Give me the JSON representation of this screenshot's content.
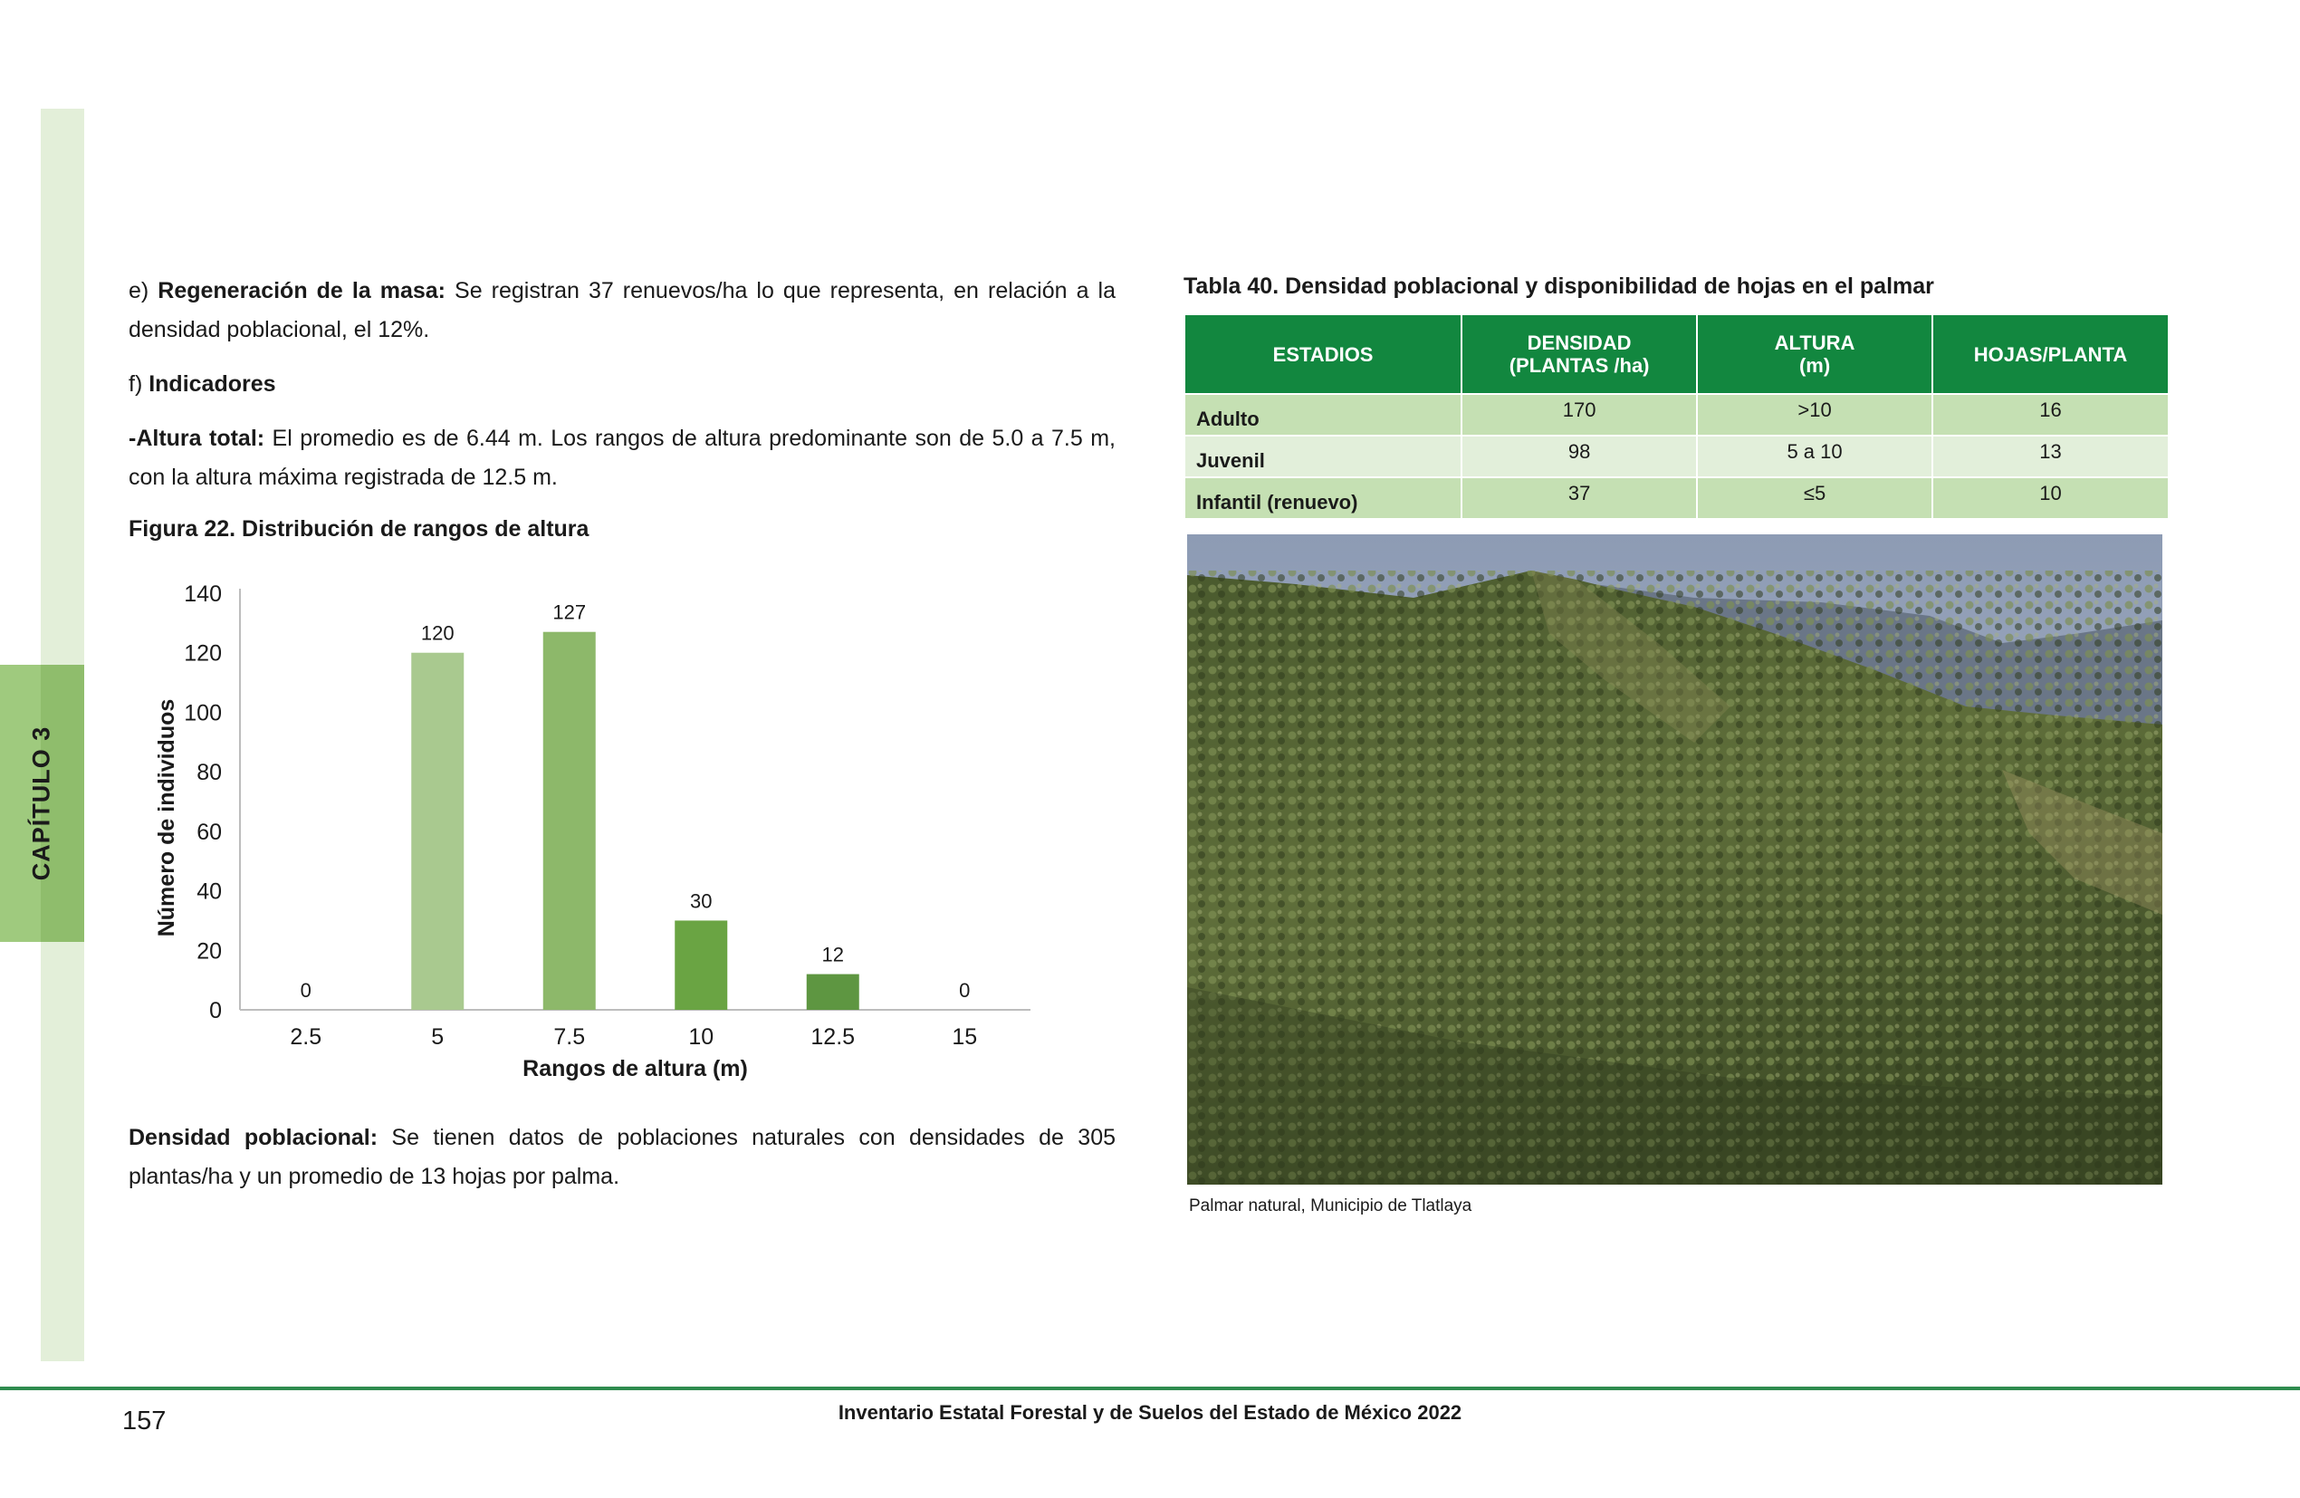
{
  "chapter": "CAPÍTULO 3",
  "left": {
    "p1": {
      "prefix": "e) ",
      "bold": "Regeneración de la masa:",
      "text": " Se registran 37 renuevos/ha lo que representa, en relación a la densidad poblacional, el 12%."
    },
    "p2": {
      "prefix": "f) ",
      "bold": "Indicadores"
    },
    "p3": {
      "bold": "-Altura total:",
      "text": " El promedio es de 6.44 m. Los rangos de altura predominante son de 5.0 a 7.5 m, con la altura máxima registrada de 12.5 m."
    },
    "figure_title": "Figura 22. Distribución de rangos de altura",
    "p4": {
      "bold": "Densidad poblacional:",
      "text": " Se tienen datos de poblaciones naturales con densidades de 305 plantas/ha y un promedio de 13 hojas por palma."
    }
  },
  "chart_data": {
    "type": "bar",
    "title": "",
    "categories": [
      "2.5",
      "5",
      "7.5",
      "10",
      "12.5",
      "15"
    ],
    "values": [
      0,
      120,
      127,
      30,
      12,
      0
    ],
    "xlabel": "Rangos de altura (m)",
    "ylabel": "Número de individuos",
    "ylim": [
      0,
      140
    ],
    "yticks": [
      "0",
      "20",
      "40",
      "60",
      "80",
      "100",
      "120",
      "140"
    ],
    "bar_colors": [
      "#a9c98f",
      "#a9c98f",
      "#8db86a",
      "#6aa443",
      "#5e9641",
      "#5e9641"
    ],
    "grid": false,
    "legend": "none"
  },
  "table": {
    "title": "Tabla 40. Densidad poblacional y disponibilidad de hojas en el palmar",
    "headers": [
      {
        "line1": "ESTADIOS",
        "line2": ""
      },
      {
        "line1": "DENSIDAD",
        "line2": "(PLANTAS /ha)"
      },
      {
        "line1": "ALTURA",
        "line2": "(m)"
      },
      {
        "line1": "HOJAS/PLANTA",
        "line2": ""
      }
    ],
    "rows": [
      {
        "stage": "Adulto",
        "density": "170",
        "height": ">10",
        "leaves": "16"
      },
      {
        "stage": "Juvenil",
        "density": "98",
        "height": "5 a 10",
        "leaves": "13"
      },
      {
        "stage": "Infantil (renuevo)",
        "density": "37",
        "height": "≤5",
        "leaves": "10"
      }
    ]
  },
  "photo": {
    "caption": "Palmar natural, Municipio de Tlatlaya"
  },
  "footer": {
    "page_number": "157",
    "title": "Inventario Estatal Forestal y de Suelos del Estado de México 2022"
  }
}
